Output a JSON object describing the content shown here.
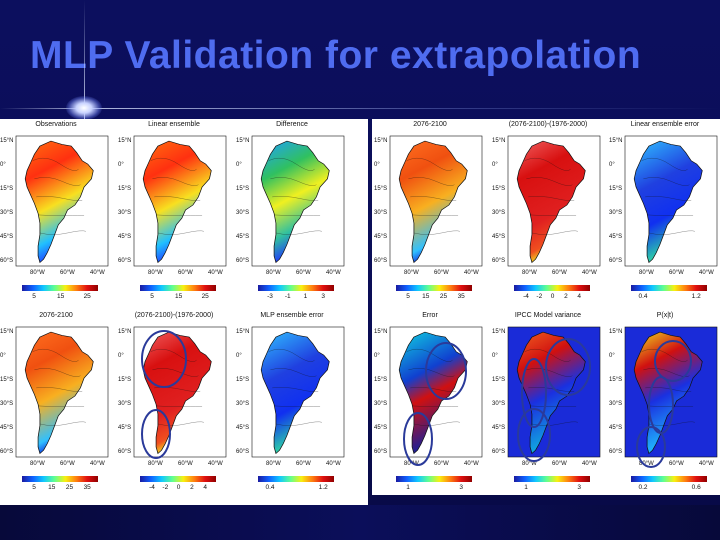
{
  "title": "MLP Validation for extrapolation",
  "lat_labels": [
    "15°N",
    "0°",
    "15°S",
    "30°S",
    "45°S",
    "60°S"
  ],
  "lon_labels": [
    "80°W",
    "60°W",
    "40°W"
  ],
  "colors": {
    "ocean_blue": "#1a2bd8",
    "shade_red": "#d81818",
    "ellipse": "#2a3a9a"
  },
  "panels": [
    {
      "id": "p1",
      "title": "Observations",
      "map": "rainfall",
      "legend": [
        "5",
        "15",
        "25"
      ]
    },
    {
      "id": "p2",
      "title": "Linear ensemble",
      "map": "rainfall",
      "legend": [
        "5",
        "15",
        "25"
      ]
    },
    {
      "id": "p3",
      "title": "Difference",
      "map": "diff",
      "legend": [
        "-3",
        "-1",
        "1",
        "3"
      ]
    },
    {
      "id": "p4",
      "title": "2076-2100",
      "map": "warm",
      "legend": [
        "5",
        "15",
        "25",
        "35"
      ]
    },
    {
      "id": "p5",
      "title": "(2076-2100)-(1976-2000)",
      "map": "red",
      "legend": [
        "-4",
        "-2",
        "0",
        "2",
        "4"
      ]
    },
    {
      "id": "p6",
      "title": "Linear ensemble error",
      "map": "blue",
      "legend": [
        "0.4",
        "1.2"
      ]
    },
    {
      "id": "p7",
      "title": "2076-2100",
      "map": "warm",
      "legend": [
        "5",
        "15",
        "25",
        "35"
      ]
    },
    {
      "id": "p8",
      "title": "(2076-2100)-(1976-2000)",
      "map": "red",
      "legend": [
        "-4",
        "-2",
        "0",
        "2",
        "4"
      ]
    },
    {
      "id": "p9",
      "title": "MLP ensemble error",
      "map": "blue",
      "legend": [
        "0.4",
        "1.2"
      ]
    },
    {
      "id": "p10",
      "title": "Error",
      "map": "error",
      "legend": [
        "1",
        "3"
      ]
    },
    {
      "id": "p11",
      "title": "IPCC Model variance",
      "map": "variance",
      "legend": [
        "1",
        "3"
      ]
    },
    {
      "id": "p12",
      "title": "P(x|t)",
      "map": "prob",
      "legend": [
        "0.2",
        "0.6"
      ]
    }
  ]
}
